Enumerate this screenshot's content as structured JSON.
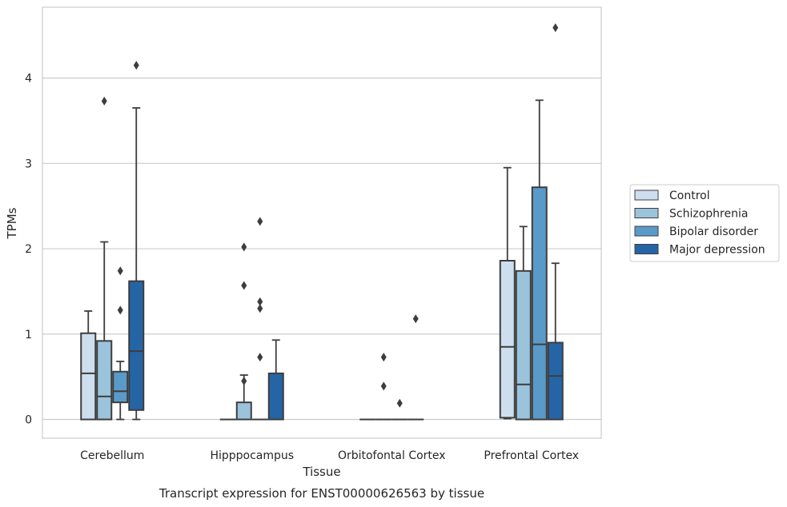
{
  "chart_data": {
    "type": "box",
    "caption": "Transcript expression for ENST00000626563 by tissue",
    "xlabel": "Tissue",
    "ylabel": "TPMs",
    "ylim": [
      -0.22,
      4.83
    ],
    "yticks": [
      0,
      1,
      2,
      3,
      4
    ],
    "categories": [
      "Cerebellum",
      "Hipppocampus",
      "Orbitofontal Cortex",
      "Prefrontal Cortex"
    ],
    "grid": "horizontal",
    "legend_position": "right",
    "series": [
      {
        "name": "Control",
        "color": "#cddeef",
        "boxes": [
          {
            "low": 0,
            "q1": 0,
            "median": 0.54,
            "q3": 1.01,
            "high": 1.27,
            "outliers": []
          },
          {
            "low": 0,
            "q1": 0,
            "median": 0,
            "q3": 0,
            "high": 0,
            "outliers": []
          },
          {
            "low": 0,
            "q1": 0,
            "median": 0,
            "q3": 0,
            "high": 0,
            "outliers": []
          },
          {
            "low": 0.01,
            "q1": 0.02,
            "median": 0.85,
            "q3": 1.86,
            "high": 2.95,
            "outliers": []
          }
        ]
      },
      {
        "name": "Schizophrenia",
        "color": "#9cc3dc",
        "boxes": [
          {
            "low": 0,
            "q1": 0,
            "median": 0.27,
            "q3": 0.92,
            "high": 2.08,
            "outliers": [
              3.73
            ]
          },
          {
            "low": 0,
            "q1": 0,
            "median": 0,
            "q3": 0.2,
            "high": 0.52,
            "outliers": [
              0.45,
              1.57,
              2.02
            ]
          },
          {
            "low": 0,
            "q1": 0,
            "median": 0,
            "q3": 0,
            "high": 0,
            "outliers": [
              0.39,
              0.73
            ]
          },
          {
            "low": 0,
            "q1": 0,
            "median": 0.41,
            "q3": 1.74,
            "high": 2.26,
            "outliers": []
          }
        ]
      },
      {
        "name": "Bipolar disorder",
        "color": "#5a9ac8",
        "boxes": [
          {
            "low": 0,
            "q1": 0.2,
            "median": 0.33,
            "q3": 0.56,
            "high": 0.68,
            "outliers": [
              1.28,
              1.74
            ]
          },
          {
            "low": 0,
            "q1": 0,
            "median": 0,
            "q3": 0,
            "high": 0,
            "outliers": [
              0.73,
              1.3,
              1.38,
              2.32
            ]
          },
          {
            "low": 0,
            "q1": 0,
            "median": 0,
            "q3": 0,
            "high": 0,
            "outliers": [
              0.19
            ]
          },
          {
            "low": 0,
            "q1": 0,
            "median": 0.88,
            "q3": 2.72,
            "high": 3.74,
            "outliers": []
          }
        ]
      },
      {
        "name": "Major depression",
        "color": "#2565a6",
        "boxes": [
          {
            "low": 0,
            "q1": 0.11,
            "median": 0.8,
            "q3": 1.62,
            "high": 3.65,
            "outliers": [
              4.15
            ]
          },
          {
            "low": 0,
            "q1": 0,
            "median": 0,
            "q3": 0.54,
            "high": 0.93,
            "outliers": []
          },
          {
            "low": 0,
            "q1": 0,
            "median": 0,
            "q3": 0,
            "high": 0,
            "outliers": [
              1.18
            ]
          },
          {
            "low": 0,
            "q1": 0,
            "median": 0.51,
            "q3": 0.9,
            "high": 1.83,
            "outliers": [
              4.59
            ]
          }
        ]
      }
    ]
  }
}
